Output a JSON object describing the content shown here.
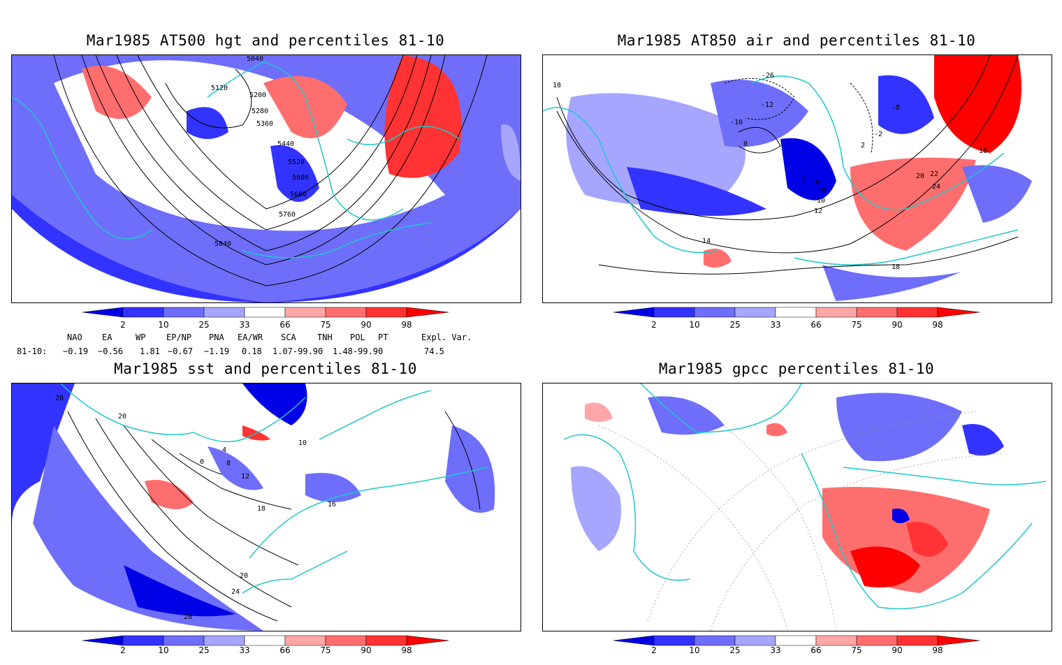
{
  "panels": [
    {
      "id": "hgt",
      "title": "Mar1985 AT500 hgt and percentiles 81-10",
      "contour_labels": [
        "5040",
        "5120",
        "5200",
        "5280",
        "5360",
        "5440",
        "5520",
        "5600",
        "5680",
        "5760",
        "5840"
      ]
    },
    {
      "id": "air",
      "title": "Mar1985 AT850 air and percentiles 81-10",
      "contour_labels": [
        "18",
        "-26",
        "-12",
        "-10",
        "-8",
        "-2",
        "0",
        "2",
        "4",
        "6",
        "8",
        "10",
        "12",
        "14",
        "16",
        "18",
        "20",
        "22",
        "24"
      ]
    },
    {
      "id": "sst",
      "title": "Mar1985 sst and percentiles 81-10",
      "contour_labels": [
        "28",
        "20",
        "0",
        "4",
        "8",
        "12",
        "16",
        "18",
        "20",
        "24",
        "28",
        "10"
      ]
    },
    {
      "id": "gpcc",
      "title": "Mar1985 gpcc percentiles 81-10",
      "contour_labels": []
    }
  ],
  "colorbar": {
    "labels": [
      "2",
      "10",
      "25",
      "33",
      "66",
      "75",
      "90",
      "98"
    ],
    "colors": {
      "below": [
        "#0000e6",
        "#3333ff",
        "#6e6efa",
        "#a6a6ff"
      ],
      "above": [
        "#ffa6a6",
        "#ff6e6e",
        "#ff3333",
        "#ff0000"
      ]
    }
  },
  "teleconnections": {
    "headers": [
      "NAO",
      "EA",
      "WP",
      "EP/NP",
      "PNA",
      "EA/WR",
      "SCA",
      "TNH",
      "POL",
      "PT",
      "Expl. Var."
    ],
    "row_label": "81-10:",
    "values": [
      "−0.19",
      "−0.56",
      "1.81",
      "−0.67",
      "−1.19",
      "0.18",
      "1.07-99.90",
      "1.48-99.90",
      "74.5"
    ]
  },
  "colors": {
    "coast": "#1ec8c8",
    "contour": "#000000"
  }
}
